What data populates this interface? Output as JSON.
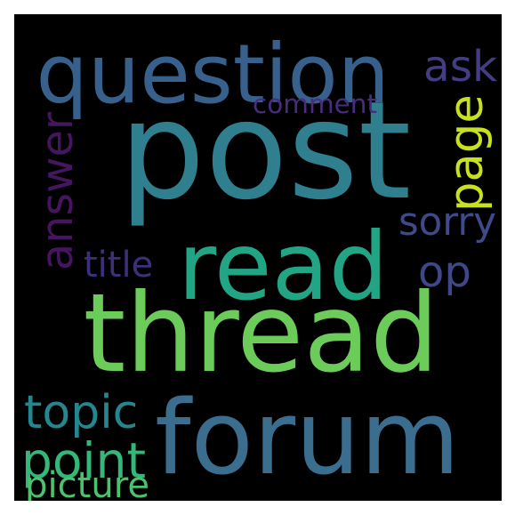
{
  "background": "#000000",
  "words": [
    {
      "text": "post",
      "color": "#2f7f8e"
    },
    {
      "text": "thread",
      "color": "#6ccc5a"
    },
    {
      "text": "question",
      "color": "#37618c"
    },
    {
      "text": "forum",
      "color": "#3a6d8e"
    },
    {
      "text": "read",
      "color": "#21a585"
    },
    {
      "text": "ask",
      "color": "#433d84"
    },
    {
      "text": "comment",
      "color": "#472d7b"
    },
    {
      "text": "page",
      "color": "#c9e020"
    },
    {
      "text": "answer",
      "color": "#46155f"
    },
    {
      "text": "sorry",
      "color": "#3e4a89"
    },
    {
      "text": "op",
      "color": "#3f4788"
    },
    {
      "text": "title",
      "color": "#3e2f78"
    },
    {
      "text": "topic",
      "color": "#24868e"
    },
    {
      "text": "point",
      "color": "#35b779"
    },
    {
      "text": "picture",
      "color": "#4cc26c"
    }
  ]
}
